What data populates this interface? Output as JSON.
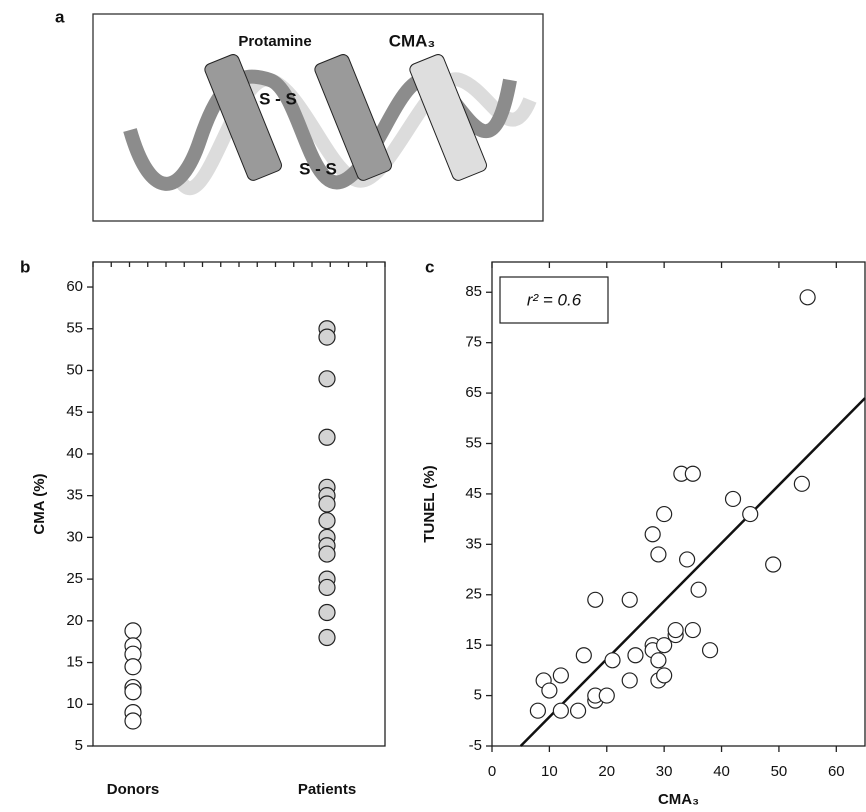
{
  "panel_a": {
    "label": "a",
    "protamine": "Protamine",
    "cma": "CMA₃",
    "bond_1": "S - S",
    "bond_2": "S - S"
  },
  "chart_data": [
    {
      "type": "strip",
      "panel_label": "b",
      "ylabel": "CMA (%)",
      "categories": [
        "Donors",
        "Patients"
      ],
      "colors": [
        "#ffffff",
        "#d3d3d3"
      ],
      "values": [
        [
          18.8,
          17,
          16,
          14.5,
          12,
          11.5,
          9,
          8
        ],
        [
          55,
          54,
          49,
          42,
          36,
          35,
          34,
          32,
          30,
          29,
          28,
          25,
          24,
          21,
          18
        ]
      ],
      "ylim": [
        5,
        63
      ],
      "yticks": [
        5,
        10,
        15,
        20,
        25,
        30,
        35,
        40,
        45,
        50,
        55,
        60
      ]
    },
    {
      "type": "scatter",
      "panel_label": "c",
      "xlabel": "CMA₃",
      "ylabel": "TUNEL (%)",
      "annotation": "r² = 0.6",
      "color": "#ffffff",
      "x": [
        8,
        9,
        10,
        12,
        12,
        15,
        16,
        18,
        18,
        18,
        20,
        21,
        24,
        24,
        25,
        28,
        28,
        28,
        29,
        29,
        29,
        30,
        30,
        30,
        32,
        32,
        33,
        34,
        35,
        35,
        36,
        38,
        42,
        45,
        49,
        54,
        55
      ],
      "values": [
        2,
        8,
        6,
        2,
        9,
        2,
        13,
        4,
        5,
        24,
        5,
        12,
        8,
        24,
        13,
        15,
        14,
        37,
        33,
        8,
        12,
        9,
        15,
        41,
        17,
        18,
        49,
        32,
        49,
        18,
        26,
        14,
        44,
        41,
        31,
        47,
        84
      ],
      "fit": {
        "x": [
          5,
          65
        ],
        "y": [
          -5,
          64
        ]
      },
      "xlim": [
        0,
        65
      ],
      "ylim": [
        -5,
        91
      ],
      "xticks": [
        0,
        10,
        20,
        30,
        40,
        50,
        60
      ],
      "yticks": [
        -5,
        5,
        15,
        25,
        35,
        45,
        55,
        65,
        75,
        85
      ]
    }
  ]
}
